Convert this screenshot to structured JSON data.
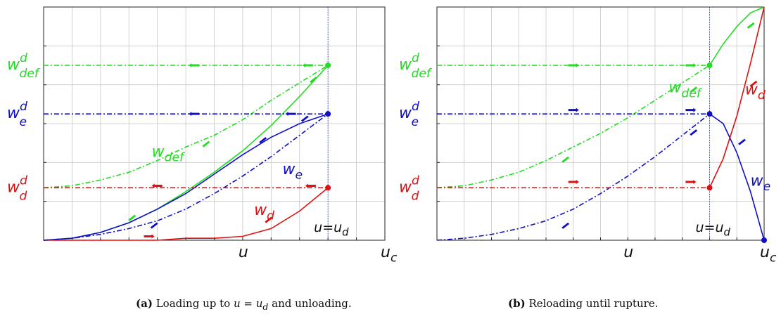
{
  "colors": {
    "green": "#22dd22",
    "blue": "#1010c8",
    "red": "#e01010",
    "grid": "#c8c8c8"
  },
  "captions": [
    {
      "tag": "(a)",
      "prefix": "Loading up to ",
      "math": "u = u",
      "sub": "d",
      "suffix": " and unloading."
    },
    {
      "tag": "(b)",
      "prefix": "Reloading until rupture.",
      "math": "",
      "sub": "",
      "suffix": ""
    }
  ],
  "chart_data": [
    {
      "type": "line",
      "title": "",
      "x_range": [
        0,
        1.2
      ],
      "y_range": [
        0,
        1.2
      ],
      "grid": true,
      "x_tick_labels": [
        {
          "x": 0.7,
          "base": "u",
          "sub": ""
        },
        {
          "x": 1.2,
          "base": "u",
          "sub": "c"
        }
      ],
      "y_tick_labels": [
        {
          "y": 0.9,
          "base": "w",
          "sup": "d",
          "sub": "def",
          "color": "#22dd22"
        },
        {
          "y": 0.65,
          "base": "w",
          "sup": "d",
          "sub": "e",
          "color": "#1010c8"
        },
        {
          "y": 0.27,
          "base": "w",
          "sup": "d",
          "sub": "d",
          "color": "#e01010"
        }
      ],
      "vline": {
        "x": 1.0,
        "base": "u=u",
        "sub": "d"
      },
      "series": [
        {
          "name": "w_def",
          "role": "loading",
          "style": "solid",
          "color": "#22dd22",
          "x": [
            0,
            0.1,
            0.2,
            0.3,
            0.4,
            0.5,
            0.6,
            0.7,
            0.8,
            0.9,
            1.0
          ],
          "y": [
            0,
            0.01,
            0.04,
            0.09,
            0.16,
            0.25,
            0.35,
            0.46,
            0.59,
            0.74,
            0.9
          ]
        },
        {
          "name": "w_e",
          "role": "loading",
          "style": "solid",
          "color": "#1010c8",
          "x": [
            0,
            0.1,
            0.2,
            0.3,
            0.4,
            0.5,
            0.6,
            0.7,
            0.8,
            0.9,
            1.0
          ],
          "y": [
            0,
            0.01,
            0.04,
            0.09,
            0.16,
            0.24,
            0.34,
            0.44,
            0.53,
            0.6,
            0.65
          ]
        },
        {
          "name": "w_d",
          "role": "loading",
          "style": "solid",
          "color": "#e01010",
          "x": [
            0,
            0.1,
            0.2,
            0.3,
            0.4,
            0.5,
            0.6,
            0.7,
            0.8,
            0.9,
            1.0
          ],
          "y": [
            0,
            0,
            0,
            0,
            0,
            0.01,
            0.01,
            0.02,
            0.06,
            0.15,
            0.27
          ]
        },
        {
          "name": "w_def",
          "role": "unloading",
          "style": "dashdot",
          "color": "#22dd22",
          "x": [
            0,
            0.1,
            0.2,
            0.3,
            0.4,
            0.5,
            0.6,
            0.7,
            0.8,
            0.9,
            1.0
          ],
          "y": [
            0.27,
            0.28,
            0.31,
            0.35,
            0.41,
            0.48,
            0.54,
            0.62,
            0.72,
            0.81,
            0.9
          ]
        },
        {
          "name": "w_e",
          "role": "unloading",
          "style": "dashdot",
          "color": "#1010c8",
          "x": [
            0,
            0.1,
            0.2,
            0.3,
            0.4,
            0.5,
            0.6,
            0.7,
            0.8,
            0.9,
            1.0
          ],
          "y": [
            0,
            0.01,
            0.03,
            0.06,
            0.1,
            0.16,
            0.24,
            0.33,
            0.43,
            0.54,
            0.65
          ]
        },
        {
          "name": "",
          "role": "unloading",
          "style": "dashdot",
          "color": "#22dd22",
          "x": [
            0,
            1.0
          ],
          "y": [
            0.9,
            0.9
          ]
        },
        {
          "name": "",
          "role": "unloading",
          "style": "dashdot",
          "color": "#1010c8",
          "x": [
            0,
            1.0
          ],
          "y": [
            0.65,
            0.65
          ]
        },
        {
          "name": "",
          "role": "unloading",
          "style": "dashdot",
          "color": "#e01010",
          "x": [
            0,
            1.0
          ],
          "y": [
            0.27,
            0.27
          ]
        }
      ],
      "points": [
        {
          "x": 1.0,
          "y": 0.9,
          "color": "#22dd22"
        },
        {
          "x": 1.0,
          "y": 0.65,
          "color": "#1010c8"
        },
        {
          "x": 1.0,
          "y": 0.27,
          "color": "#e01010"
        }
      ],
      "annotations": [
        {
          "base": "w",
          "sub": "def",
          "color": "#22dd22",
          "x": 0.38,
          "y": 0.43
        },
        {
          "base": "w",
          "sub": "e",
          "color": "#1010c8",
          "x": 0.84,
          "y": 0.34
        },
        {
          "base": "w",
          "sub": "d",
          "color": "#e01010",
          "x": 0.74,
          "y": 0.13
        }
      ],
      "arrows": [
        {
          "x": 0.53,
          "y": 0.9,
          "dir": "left",
          "color": "#22dd22"
        },
        {
          "x": 0.93,
          "y": 0.9,
          "dir": "left",
          "color": "#22dd22"
        },
        {
          "x": 0.53,
          "y": 0.65,
          "dir": "left",
          "color": "#1010c8"
        },
        {
          "x": 0.87,
          "y": 0.65,
          "dir": "left",
          "color": "#1010c8"
        },
        {
          "x": 0.4,
          "y": 0.28,
          "dir": "left",
          "color": "#e01010"
        },
        {
          "x": 0.94,
          "y": 0.28,
          "dir": "left",
          "color": "#e01010"
        },
        {
          "x": 0.31,
          "y": 0.12,
          "dir": "up",
          "color": "#22dd22"
        },
        {
          "x": 0.57,
          "y": 0.5,
          "dir": "up",
          "color": "#22dd22"
        },
        {
          "x": 0.77,
          "y": 0.52,
          "dir": "up",
          "color": "#1010c8"
        },
        {
          "x": 0.39,
          "y": 0.07,
          "dir": "down",
          "color": "#1010c8"
        },
        {
          "x": 0.92,
          "y": 0.62,
          "dir": "down",
          "color": "#1010c8"
        },
        {
          "x": 0.95,
          "y": 0.82,
          "dir": "down",
          "color": "#22dd22"
        },
        {
          "x": 0.37,
          "y": 0.02,
          "dir": "right",
          "color": "#e01010"
        },
        {
          "x": 0.79,
          "y": 0.11,
          "dir": "up",
          "color": "#e01010"
        }
      ]
    },
    {
      "type": "line",
      "title": "",
      "x_range": [
        0,
        1.2
      ],
      "y_range": [
        0,
        1.2
      ],
      "grid": true,
      "x_tick_labels": [
        {
          "x": 0.7,
          "base": "u",
          "sub": ""
        },
        {
          "x": 1.2,
          "base": "u",
          "sub": "c"
        }
      ],
      "y_tick_labels": [
        {
          "y": 0.9,
          "base": "w",
          "sup": "d",
          "sub": "def",
          "color": "#22dd22"
        },
        {
          "y": 0.65,
          "base": "w",
          "sup": "d",
          "sub": "e",
          "color": "#1010c8"
        },
        {
          "y": 0.27,
          "base": "w",
          "sup": "d",
          "sub": "d",
          "color": "#e01010"
        }
      ],
      "vline": {
        "x": 1.0,
        "base": "u=u",
        "sub": "d"
      },
      "series": [
        {
          "name": "w_def",
          "role": "reloading",
          "style": "dashdot",
          "color": "#22dd22",
          "x": [
            0,
            0.1,
            0.2,
            0.3,
            0.4,
            0.5,
            0.6,
            0.7,
            0.8,
            0.9,
            1.0
          ],
          "y": [
            0.27,
            0.28,
            0.31,
            0.35,
            0.41,
            0.48,
            0.55,
            0.63,
            0.72,
            0.81,
            0.9
          ]
        },
        {
          "name": "w_e",
          "role": "reloading",
          "style": "dashdot",
          "color": "#1010c8",
          "x": [
            0,
            0.1,
            0.2,
            0.3,
            0.4,
            0.5,
            0.6,
            0.7,
            0.8,
            0.9,
            1.0
          ],
          "y": [
            0,
            0.01,
            0.03,
            0.06,
            0.1,
            0.16,
            0.24,
            0.33,
            0.43,
            0.54,
            0.65
          ]
        },
        {
          "name": "",
          "role": "reloading",
          "style": "dashdot",
          "color": "#22dd22",
          "x": [
            0,
            1.0
          ],
          "y": [
            0.9,
            0.9
          ]
        },
        {
          "name": "",
          "role": "reloading",
          "style": "dashdot",
          "color": "#1010c8",
          "x": [
            0,
            1.0
          ],
          "y": [
            0.65,
            0.65
          ]
        },
        {
          "name": "",
          "role": "reloading",
          "style": "dashdot",
          "color": "#e01010",
          "x": [
            0,
            1.0
          ],
          "y": [
            0.27,
            0.27
          ]
        },
        {
          "name": "w_def",
          "role": "rupture",
          "style": "solid",
          "color": "#22dd22",
          "x": [
            1.0,
            1.05,
            1.1,
            1.15,
            1.2
          ],
          "y": [
            0.9,
            1.01,
            1.1,
            1.17,
            1.2
          ]
        },
        {
          "name": "w_e",
          "role": "rupture",
          "style": "solid",
          "color": "#1010c8",
          "x": [
            1.0,
            1.05,
            1.1,
            1.15,
            1.2
          ],
          "y": [
            0.65,
            0.6,
            0.45,
            0.25,
            0
          ]
        },
        {
          "name": "w_d",
          "role": "rupture",
          "style": "solid",
          "color": "#e01010",
          "x": [
            1.0,
            1.05,
            1.1,
            1.15,
            1.2
          ],
          "y": [
            0.27,
            0.42,
            0.64,
            0.91,
            1.2
          ]
        }
      ],
      "points": [
        {
          "x": 1.0,
          "y": 0.9,
          "color": "#22dd22"
        },
        {
          "x": 1.0,
          "y": 0.65,
          "color": "#1010c8"
        },
        {
          "x": 1.0,
          "y": 0.27,
          "color": "#e01010"
        },
        {
          "x": 1.2,
          "y": 0,
          "color": "#1010c8"
        }
      ],
      "annotations": [
        {
          "base": "w",
          "sub": "def",
          "color": "#22dd22",
          "x": 0.85,
          "y": 0.76
        },
        {
          "base": "w",
          "sub": "d",
          "color": "#e01010",
          "x": 1.13,
          "y": 0.75
        },
        {
          "base": "w",
          "sub": "e",
          "color": "#1010c8",
          "x": 1.15,
          "y": 0.28
        }
      ],
      "arrows": [
        {
          "x": 0.5,
          "y": 0.9,
          "dir": "right",
          "color": "#22dd22"
        },
        {
          "x": 0.93,
          "y": 0.9,
          "dir": "right",
          "color": "#22dd22"
        },
        {
          "x": 0.5,
          "y": 0.67,
          "dir": "right",
          "color": "#1010c8"
        },
        {
          "x": 0.93,
          "y": 0.67,
          "dir": "right",
          "color": "#1010c8"
        },
        {
          "x": 0.5,
          "y": 0.3,
          "dir": "right",
          "color": "#e01010"
        },
        {
          "x": 0.93,
          "y": 0.3,
          "dir": "right",
          "color": "#e01010"
        },
        {
          "x": 0.47,
          "y": 0.42,
          "dir": "up",
          "color": "#22dd22"
        },
        {
          "x": 0.94,
          "y": 0.78,
          "dir": "up",
          "color": "#22dd22"
        },
        {
          "x": 1.15,
          "y": 1.11,
          "dir": "up",
          "color": "#22dd22"
        },
        {
          "x": 0.47,
          "y": 0.08,
          "dir": "up",
          "color": "#1010c8"
        },
        {
          "x": 1.12,
          "y": 0.5,
          "dir": "down",
          "color": "#1010c8"
        },
        {
          "x": 0.94,
          "y": 0.56,
          "dir": "up",
          "color": "#1010c8"
        },
        {
          "x": 1.16,
          "y": 0.81,
          "dir": "up",
          "color": "#e01010"
        }
      ]
    }
  ]
}
